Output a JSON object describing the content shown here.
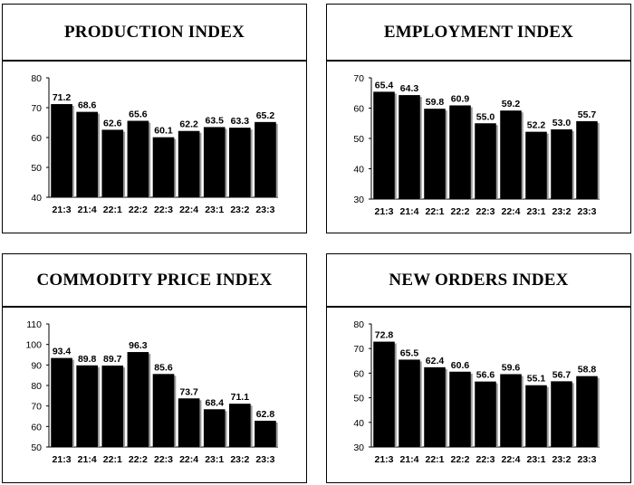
{
  "chart_data": [
    {
      "type": "bar",
      "title": "PRODUCTION INDEX",
      "categories": [
        "21:3",
        "21:4",
        "22:1",
        "22:2",
        "22:3",
        "22:4",
        "23:1",
        "23:2",
        "23:3"
      ],
      "values": [
        71.2,
        68.6,
        62.6,
        65.6,
        60.1,
        62.2,
        63.5,
        63.3,
        65.2
      ],
      "ylim": [
        40,
        80
      ],
      "yticks": [
        40,
        50,
        60,
        70,
        80
      ],
      "xlabel": "",
      "ylabel": ""
    },
    {
      "type": "bar",
      "title": "EMPLOYMENT INDEX",
      "categories": [
        "21:3",
        "21:4",
        "22:1",
        "22:2",
        "22:3",
        "22:4",
        "23:1",
        "23:2",
        "23:3"
      ],
      "values": [
        65.4,
        64.3,
        59.8,
        60.9,
        55.0,
        59.2,
        52.2,
        53.0,
        55.7
      ],
      "ylim": [
        30,
        70
      ],
      "yticks": [
        30,
        40,
        50,
        60,
        70
      ],
      "xlabel": "",
      "ylabel": ""
    },
    {
      "type": "bar",
      "title": "COMMODITY PRICE INDEX",
      "categories": [
        "21:3",
        "21:4",
        "22:1",
        "22:2",
        "22:3",
        "22:4",
        "23:1",
        "23:2",
        "23:3"
      ],
      "values": [
        93.4,
        89.8,
        89.7,
        96.3,
        85.6,
        73.7,
        68.4,
        71.1,
        62.8
      ],
      "ylim": [
        50,
        110
      ],
      "yticks": [
        50,
        60,
        70,
        80,
        90,
        100,
        110
      ],
      "xlabel": "",
      "ylabel": ""
    },
    {
      "type": "bar",
      "title": "NEW ORDERS INDEX",
      "categories": [
        "21:3",
        "21:4",
        "22:1",
        "22:2",
        "22:3",
        "22:4",
        "23:1",
        "23:2",
        "23:3"
      ],
      "values": [
        72.8,
        65.5,
        62.4,
        60.6,
        56.6,
        59.6,
        55.1,
        56.7,
        58.8
      ],
      "ylim": [
        30,
        80
      ],
      "yticks": [
        30,
        40,
        50,
        60,
        70,
        80
      ],
      "xlabel": "",
      "ylabel": ""
    }
  ],
  "style": {
    "bar_color": "#000000",
    "bar_shadow": "#9a9a9a"
  }
}
